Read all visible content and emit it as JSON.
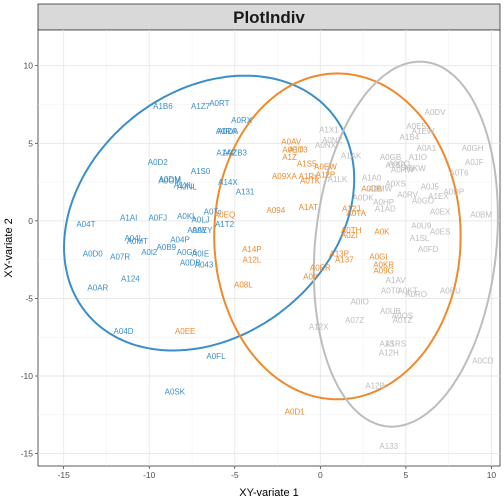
{
  "chart_data": {
    "type": "scatter",
    "title": "PlotIndiv",
    "xlabel": "XY-variate 1",
    "ylabel": "XY-variate 2",
    "xlim": [
      -16.5,
      10.5
    ],
    "ylim": [
      -15.8,
      12.3
    ],
    "xticks": [
      -15,
      -10,
      -5,
      0,
      5,
      10
    ],
    "yticks": [
      -15,
      -10,
      -5,
      0,
      5,
      10
    ],
    "grid": true,
    "legend": "none",
    "group_colors": [
      "#3a8ec9",
      "#ee8a2c",
      "#bdbdbd"
    ],
    "ellipses": [
      {
        "group": 0,
        "cx": -6.5,
        "cy": 0.5,
        "rx": 9.7,
        "ry": 7.5,
        "angle_deg": 50
      },
      {
        "group": 1,
        "cx": 1.0,
        "cy": -1.0,
        "rx": 7.2,
        "ry": 10.5,
        "angle_deg": 0
      },
      {
        "group": 2,
        "cx": 5.0,
        "cy": -1.5,
        "rx": 5.3,
        "ry": 11.8,
        "angle_deg": -5
      }
    ],
    "points": [
      {
        "label": "A1B6",
        "x": -9.2,
        "y": 7.4,
        "group": 0
      },
      {
        "label": "A1Z7",
        "x": -7.0,
        "y": 7.4,
        "group": 0
      },
      {
        "label": "A0RT",
        "x": -5.9,
        "y": 7.6,
        "group": 0
      },
      {
        "label": "A0RX",
        "x": -4.6,
        "y": 6.5,
        "group": 0
      },
      {
        "label": "A0RA",
        "x": -5.5,
        "y": 5.8,
        "group": 0
      },
      {
        "label": "A0DA",
        "x": -5.4,
        "y": 5.8,
        "group": 0
      },
      {
        "label": "A1A2",
        "x": -5.5,
        "y": 4.4,
        "group": 0
      },
      {
        "label": "A0ZB3",
        "x": -5.0,
        "y": 4.4,
        "group": 0
      },
      {
        "label": "A0D2",
        "x": -9.5,
        "y": 3.8,
        "group": 0
      },
      {
        "label": "A1S0",
        "x": -7.0,
        "y": 3.2,
        "group": 0
      },
      {
        "label": "A0DM",
        "x": -8.8,
        "y": 2.7,
        "group": 0
      },
      {
        "label": "A0GM",
        "x": -8.8,
        "y": 2.6,
        "group": 0
      },
      {
        "label": "A1XL",
        "x": -8.0,
        "y": 2.3,
        "group": 0
      },
      {
        "label": "A0NL",
        "x": -7.8,
        "y": 2.2,
        "group": 0
      },
      {
        "label": "A14X",
        "x": -5.4,
        "y": 2.5,
        "group": 0
      },
      {
        "label": "A131",
        "x": -4.4,
        "y": 1.9,
        "group": 0
      },
      {
        "label": "A04T",
        "x": -13.7,
        "y": -0.2,
        "group": 0
      },
      {
        "label": "A1AI",
        "x": -11.2,
        "y": 0.2,
        "group": 0
      },
      {
        "label": "A0FJ",
        "x": -9.5,
        "y": 0.2,
        "group": 0
      },
      {
        "label": "A0KL",
        "x": -7.8,
        "y": 0.3,
        "group": 0
      },
      {
        "label": "A0LJ",
        "x": -7.0,
        "y": 0.1,
        "group": 0
      },
      {
        "label": "A0Tc",
        "x": -6.3,
        "y": 0.6,
        "group": 0
      },
      {
        "label": "A1T2",
        "x": -5.6,
        "y": -0.2,
        "group": 0
      },
      {
        "label": "A0AY",
        "x": -7.2,
        "y": -0.6,
        "group": 0
      },
      {
        "label": "A0EY",
        "x": -6.9,
        "y": -0.6,
        "group": 0
      },
      {
        "label": "A04L",
        "x": -10.9,
        "y": -1.1,
        "group": 0
      },
      {
        "label": "A0MT",
        "x": -10.7,
        "y": -1.3,
        "group": 0
      },
      {
        "label": "A0D0",
        "x": -13.3,
        "y": -2.1,
        "group": 0
      },
      {
        "label": "A07R",
        "x": -11.7,
        "y": -2.3,
        "group": 0
      },
      {
        "label": "A0l2",
        "x": -10.0,
        "y": -2.0,
        "group": 0
      },
      {
        "label": "A0B9",
        "x": -9.0,
        "y": -1.7,
        "group": 0
      },
      {
        "label": "A04P",
        "x": -8.2,
        "y": -1.2,
        "group": 0
      },
      {
        "label": "A0G6",
        "x": -7.8,
        "y": -2.0,
        "group": 0
      },
      {
        "label": "A0IE",
        "x": -7.0,
        "y": -2.1,
        "group": 0
      },
      {
        "label": "A0DB",
        "x": -7.6,
        "y": -2.7,
        "group": 0
      },
      {
        "label": "A043",
        "x": -6.8,
        "y": -2.8,
        "group": 0
      },
      {
        "label": "A124",
        "x": -11.1,
        "y": -3.7,
        "group": 0
      },
      {
        "label": "A0AR",
        "x": -13.0,
        "y": -4.3,
        "group": 0
      },
      {
        "label": "A04D",
        "x": -11.5,
        "y": -7.1,
        "group": 0
      },
      {
        "label": "A0FL",
        "x": -6.1,
        "y": -8.7,
        "group": 0
      },
      {
        "label": "A0SK",
        "x": -8.5,
        "y": -11.0,
        "group": 0
      },
      {
        "label": "A0EQ",
        "x": -5.6,
        "y": 0.4,
        "group": 1
      },
      {
        "label": "A0AV",
        "x": -1.7,
        "y": 5.1,
        "group": 1
      },
      {
        "label": "A0EO",
        "x": -1.6,
        "y": 4.6,
        "group": 1
      },
      {
        "label": "A1T3",
        "x": -1.3,
        "y": 4.6,
        "group": 1
      },
      {
        "label": "A1Z",
        "x": -1.8,
        "y": 4.1,
        "group": 1
      },
      {
        "label": "A1S5",
        "x": -0.8,
        "y": 3.7,
        "group": 1
      },
      {
        "label": "A0EW",
        "x": 0.3,
        "y": 3.5,
        "group": 1
      },
      {
        "label": "A12P",
        "x": 0.3,
        "y": 3.0,
        "group": 1
      },
      {
        "label": "A09XA",
        "x": -2.1,
        "y": 2.9,
        "group": 1
      },
      {
        "label": "A1Rs",
        "x": -0.7,
        "y": 2.9,
        "group": 1
      },
      {
        "label": "A0TK",
        "x": -0.6,
        "y": 2.6,
        "group": 1
      },
      {
        "label": "A0DB",
        "x": 3.0,
        "y": 2.1,
        "group": 1
      },
      {
        "label": "A094",
        "x": -2.6,
        "y": 0.7,
        "group": 1
      },
      {
        "label": "A1AT",
        "x": -0.7,
        "y": 0.9,
        "group": 1
      },
      {
        "label": "A12J",
        "x": 1.8,
        "y": 0.8,
        "group": 1
      },
      {
        "label": "A0TA",
        "x": 2.1,
        "y": 0.5,
        "group": 1
      },
      {
        "label": "A0TH",
        "x": 1.8,
        "y": -0.6,
        "group": 1
      },
      {
        "label": "A0ZI",
        "x": 1.7,
        "y": -0.9,
        "group": 1
      },
      {
        "label": "A0K",
        "x": 3.6,
        "y": -0.7,
        "group": 1
      },
      {
        "label": "A14P",
        "x": -4.0,
        "y": -1.8,
        "group": 1
      },
      {
        "label": "A12L",
        "x": -4.0,
        "y": -2.5,
        "group": 1
      },
      {
        "label": "A13P",
        "x": 1.1,
        "y": -2.1,
        "group": 1
      },
      {
        "label": "A137",
        "x": 1.4,
        "y": -2.5,
        "group": 1
      },
      {
        "label": "A0GI",
        "x": 3.4,
        "y": -2.3,
        "group": 1
      },
      {
        "label": "A0KR",
        "x": 3.7,
        "y": -2.8,
        "group": 1
      },
      {
        "label": "A0ER",
        "x": 0.0,
        "y": -3.0,
        "group": 1
      },
      {
        "label": "A09G",
        "x": 3.7,
        "y": -3.2,
        "group": 1
      },
      {
        "label": "A0Il",
        "x": -0.6,
        "y": -3.6,
        "group": 1
      },
      {
        "label": "A08L",
        "x": -4.5,
        "y": -4.1,
        "group": 1
      },
      {
        "label": "A0EE",
        "x": -7.9,
        "y": -7.1,
        "group": 1
      },
      {
        "label": "A0D1",
        "x": -1.5,
        "y": -12.3,
        "group": 1
      },
      {
        "label": "A0DV",
        "x": 6.7,
        "y": 7.0,
        "group": 2
      },
      {
        "label": "A0E5",
        "x": 5.6,
        "y": 6.1,
        "group": 2
      },
      {
        "label": "A1EW",
        "x": 6.0,
        "y": 5.8,
        "group": 2
      },
      {
        "label": "A1B4",
        "x": 5.2,
        "y": 5.4,
        "group": 2
      },
      {
        "label": "A1X1",
        "x": 0.5,
        "y": 5.9,
        "group": 2
      },
      {
        "label": "A0NZ",
        "x": 0.7,
        "y": 5.2,
        "group": 2
      },
      {
        "label": "A0NX",
        "x": 0.3,
        "y": 4.9,
        "group": 2
      },
      {
        "label": "A0A1",
        "x": 6.2,
        "y": 4.7,
        "group": 2
      },
      {
        "label": "A0GH",
        "x": 8.9,
        "y": 4.7,
        "group": 2
      },
      {
        "label": "A1AK",
        "x": 1.8,
        "y": 4.2,
        "group": 2
      },
      {
        "label": "A0GB",
        "x": 4.1,
        "y": 4.1,
        "group": 2
      },
      {
        "label": "A0CQ",
        "x": 4.6,
        "y": 3.7,
        "group": 2
      },
      {
        "label": "A1SB",
        "x": 4.4,
        "y": 3.6,
        "group": 2
      },
      {
        "label": "A0HW",
        "x": 4.8,
        "y": 3.3,
        "group": 2
      },
      {
        "label": "A0KW",
        "x": 5.5,
        "y": 3.4,
        "group": 2
      },
      {
        "label": "A1IO",
        "x": 5.7,
        "y": 4.1,
        "group": 2
      },
      {
        "label": "A0JF",
        "x": 9.0,
        "y": 3.8,
        "group": 2
      },
      {
        "label": "A0T6",
        "x": 8.1,
        "y": 3.1,
        "group": 2
      },
      {
        "label": "A1LK",
        "x": 1.0,
        "y": 2.7,
        "group": 2
      },
      {
        "label": "A1A0",
        "x": 3.0,
        "y": 2.8,
        "group": 2
      },
      {
        "label": "A0XS",
        "x": 4.4,
        "y": 2.4,
        "group": 2
      },
      {
        "label": "A0MW",
        "x": 3.5,
        "y": 2.1,
        "group": 2
      },
      {
        "label": "A0J5",
        "x": 6.4,
        "y": 2.2,
        "group": 2
      },
      {
        "label": "A0DP",
        "x": 7.8,
        "y": 1.9,
        "group": 2
      },
      {
        "label": "A0RV",
        "x": 5.1,
        "y": 1.7,
        "group": 2
      },
      {
        "label": "A0DK",
        "x": 2.5,
        "y": 1.5,
        "group": 2
      },
      {
        "label": "A0HP",
        "x": 3.7,
        "y": 1.2,
        "group": 2
      },
      {
        "label": "A1EX",
        "x": 6.9,
        "y": 1.6,
        "group": 2
      },
      {
        "label": "A0GO",
        "x": 6.0,
        "y": 1.3,
        "group": 2
      },
      {
        "label": "A0EX",
        "x": 7.0,
        "y": 0.6,
        "group": 2
      },
      {
        "label": "A0BM",
        "x": 9.4,
        "y": 0.4,
        "group": 2
      },
      {
        "label": "A1AD",
        "x": 3.8,
        "y": 0.8,
        "group": 2
      },
      {
        "label": "A0U9",
        "x": 5.9,
        "y": -0.3,
        "group": 2
      },
      {
        "label": "A0ES",
        "x": 7.0,
        "y": -0.7,
        "group": 2
      },
      {
        "label": "A1SL",
        "x": 5.8,
        "y": -1.1,
        "group": 2
      },
      {
        "label": "A0FD",
        "x": 6.3,
        "y": -1.8,
        "group": 2
      },
      {
        "label": "A1AV",
        "x": 4.4,
        "y": -3.8,
        "group": 2
      },
      {
        "label": "A0T0",
        "x": 4.1,
        "y": -4.5,
        "group": 2
      },
      {
        "label": "A0KT",
        "x": 5.1,
        "y": -4.5,
        "group": 2
      },
      {
        "label": "A0RO",
        "x": 5.6,
        "y": -4.7,
        "group": 2
      },
      {
        "label": "A0EU",
        "x": 7.6,
        "y": -4.5,
        "group": 2
      },
      {
        "label": "A0IO",
        "x": 2.3,
        "y": -5.2,
        "group": 2
      },
      {
        "label": "A0UB",
        "x": 4.1,
        "y": -5.8,
        "group": 2
      },
      {
        "label": "A0OS",
        "x": 4.8,
        "y": -6.1,
        "group": 2
      },
      {
        "label": "A0TZ",
        "x": 4.8,
        "y": -6.4,
        "group": 2
      },
      {
        "label": "A07Z",
        "x": 2.0,
        "y": -6.4,
        "group": 2
      },
      {
        "label": "A12X",
        "x": -0.1,
        "y": -6.8,
        "group": 2
      },
      {
        "label": "A1S",
        "x": 3.9,
        "y": -7.9,
        "group": 2
      },
      {
        "label": "A1RS",
        "x": 4.4,
        "y": -7.9,
        "group": 2
      },
      {
        "label": "A12H",
        "x": 4.0,
        "y": -8.5,
        "group": 2
      },
      {
        "label": "A0CD",
        "x": 9.5,
        "y": -9.0,
        "group": 2
      },
      {
        "label": "A12B",
        "x": 3.2,
        "y": -10.6,
        "group": 2
      },
      {
        "label": "A133",
        "x": 4.0,
        "y": -14.5,
        "group": 2
      }
    ]
  }
}
